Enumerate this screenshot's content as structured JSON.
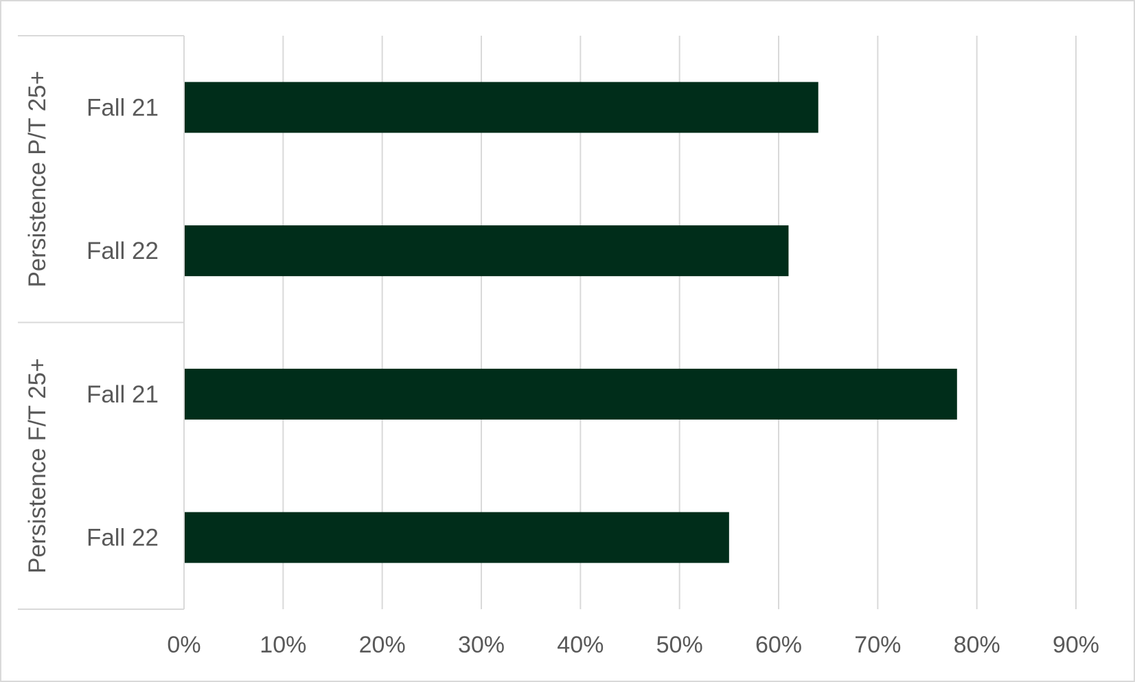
{
  "chart_data": {
    "type": "bar",
    "orientation": "horizontal",
    "title": "",
    "xlabel": "",
    "ylabel": "",
    "xlim": [
      0,
      0.9
    ],
    "x_ticks": [
      0,
      0.1,
      0.2,
      0.3,
      0.4,
      0.5,
      0.6,
      0.7,
      0.8,
      0.9
    ],
    "x_tick_labels": [
      "0%",
      "10%",
      "20%",
      "30%",
      "40%",
      "50%",
      "60%",
      "70%",
      "80%",
      "90%"
    ],
    "grid": "vertical",
    "legend": "none",
    "bar_color": "#002d1a",
    "groups": [
      {
        "label": "Persistence P/T 25+",
        "bars": [
          {
            "category": "Fall 21",
            "value": 0.64
          },
          {
            "category": "Fall 22",
            "value": 0.61
          }
        ]
      },
      {
        "label": "Persistence F/T 25+",
        "bars": [
          {
            "category": "Fall 21",
            "value": 0.78
          },
          {
            "category": "Fall 22",
            "value": 0.55
          }
        ]
      }
    ]
  },
  "colors": {
    "bar": "#002d1a",
    "gridline": "#d9d9d9",
    "axis_line": "#d9d9d9",
    "text": "#595959",
    "frame": "#d9d9d9"
  }
}
